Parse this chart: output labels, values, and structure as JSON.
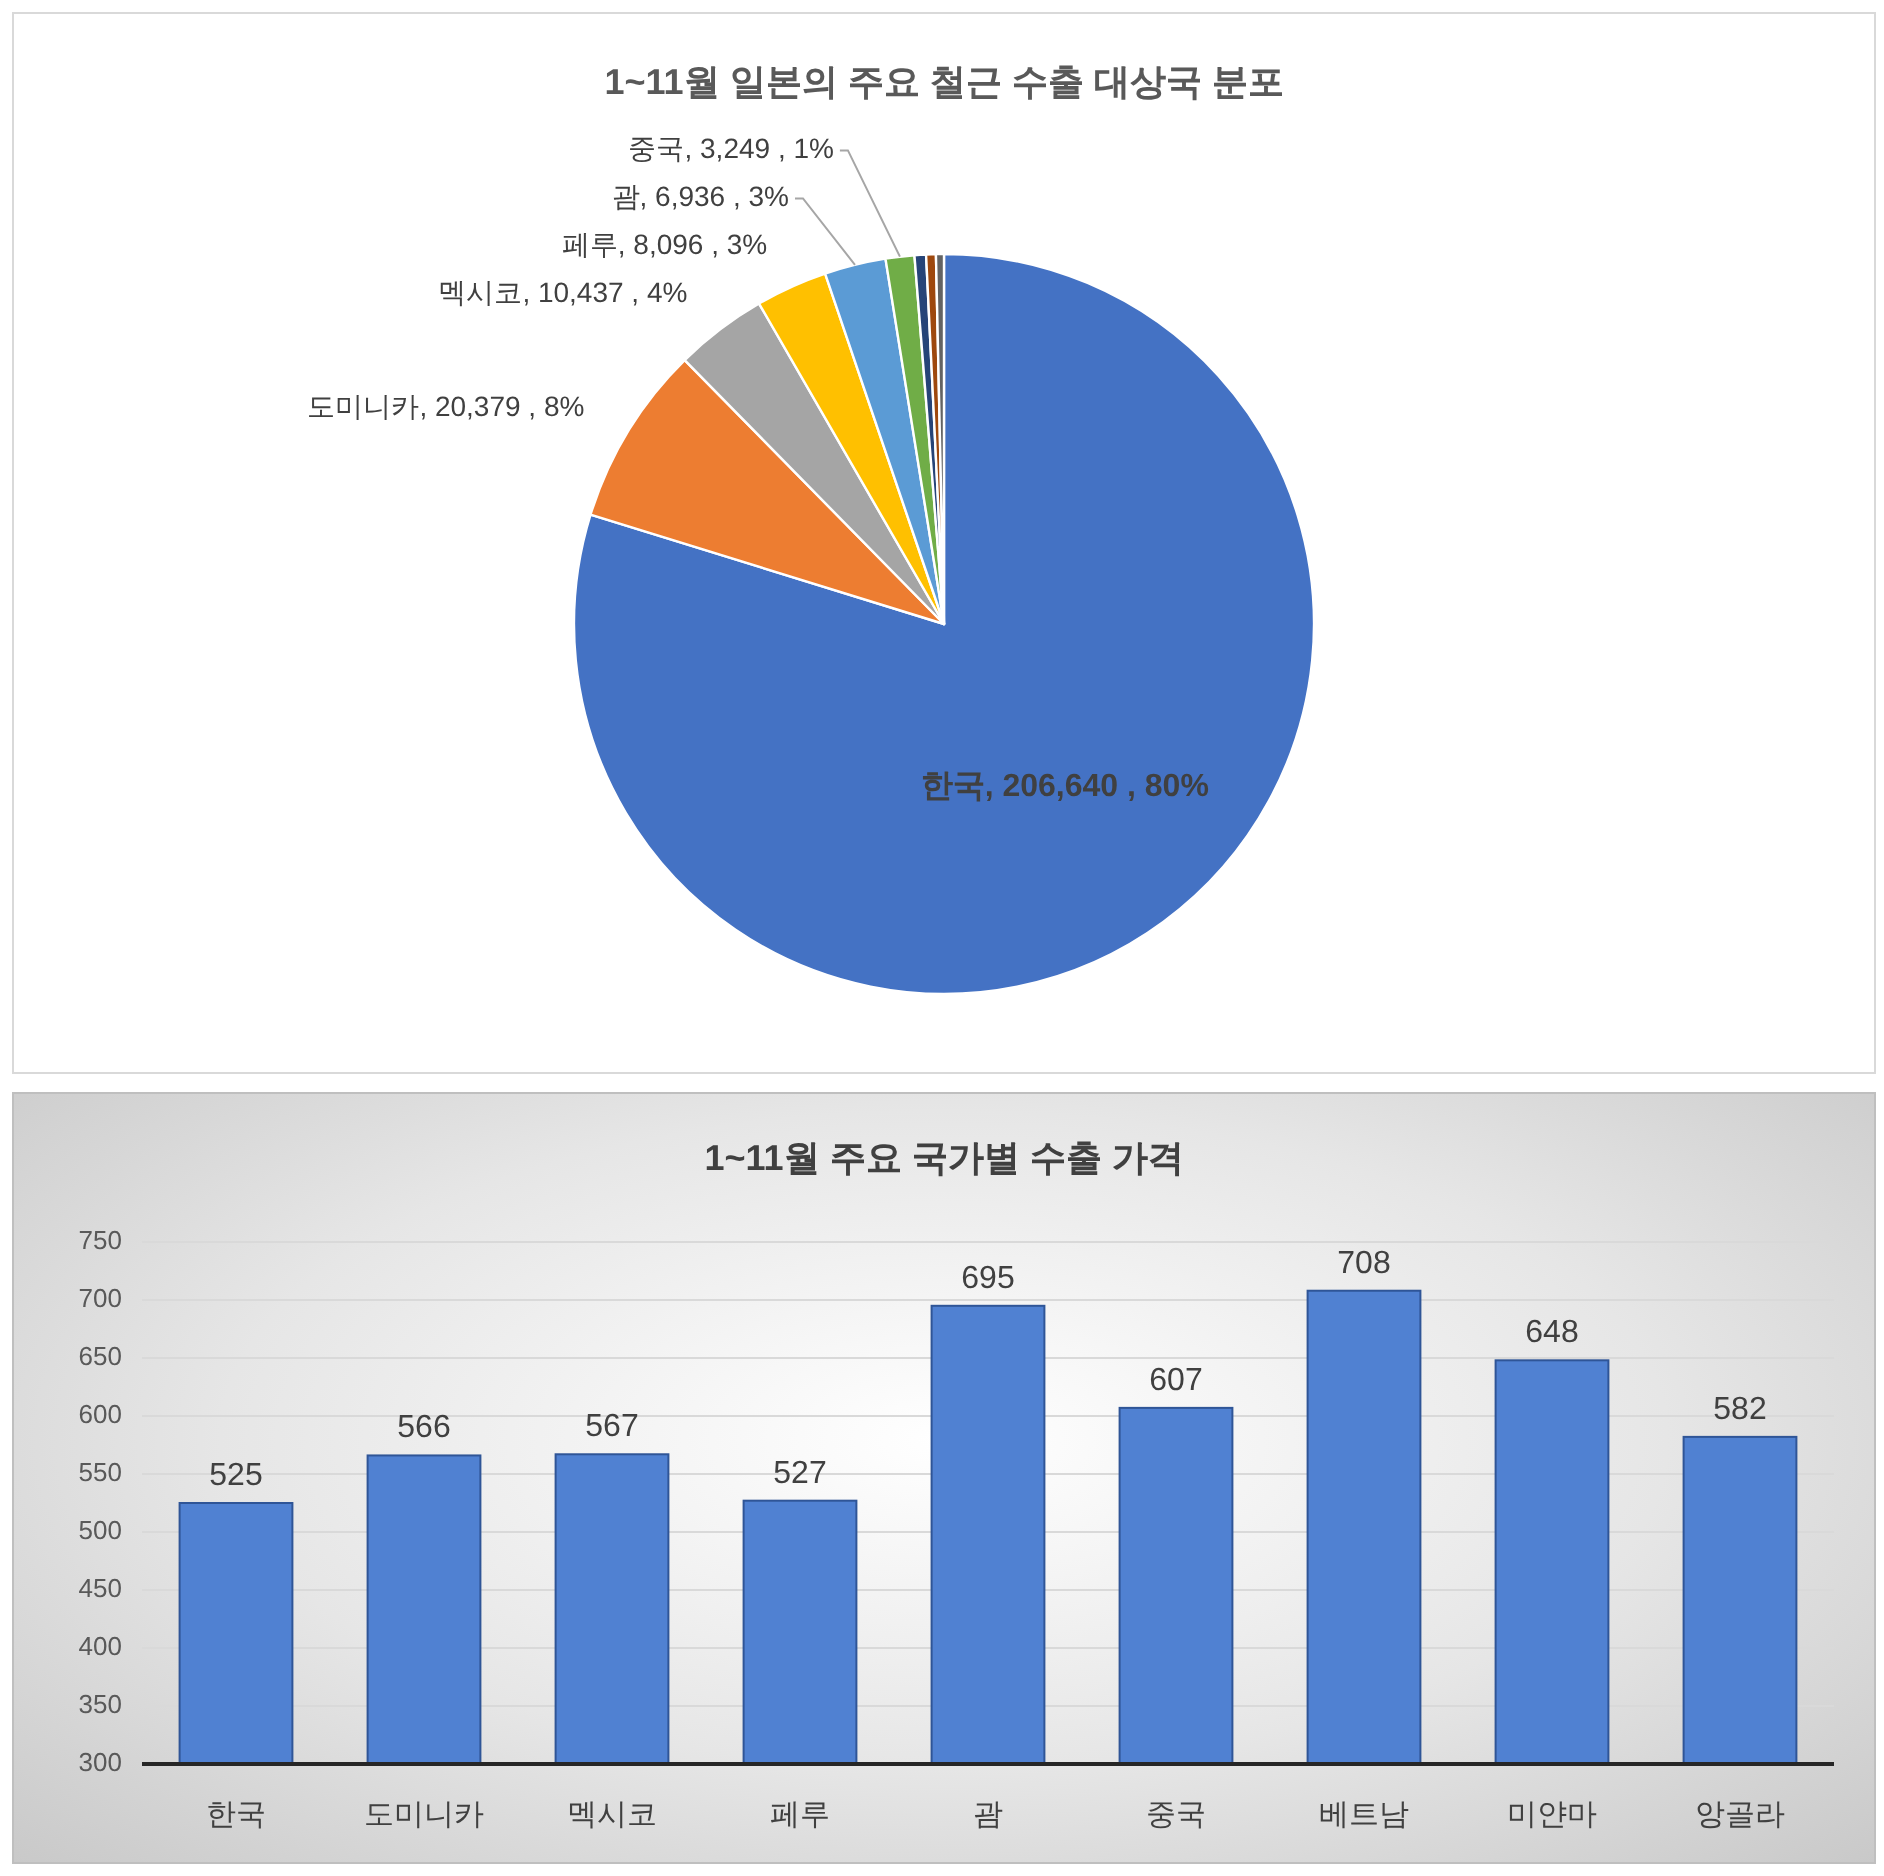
{
  "chart_data": [
    {
      "type": "pie",
      "title": "1~11월 일본의 주요 철근 수출 대상국 분포",
      "categories": [
        "한국",
        "도미니카",
        "멕시코",
        "페루",
        "괌",
        "중국",
        null,
        null,
        null
      ],
      "values": [
        206640,
        20379,
        10437,
        8096,
        6936,
        3249,
        1300,
        1100,
        900
      ],
      "colors": [
        "#4472c4",
        "#ed7d31",
        "#a5a5a5",
        "#ffc000",
        "#5b9bd5",
        "#70ad47",
        "#264478",
        "#9e480e",
        "#636363"
      ],
      "value_labels": [
        "206,640 , 80%",
        "20,379 , 8%",
        "10,437 , 4%",
        "8,096 , 3%",
        "6,936 , 3%",
        "3,249 , 1%",
        null,
        null,
        null
      ]
    },
    {
      "type": "bar",
      "title": "1~11월 주요 국가별 수출 가격",
      "categories": [
        "한국",
        "도미니카",
        "멕시코",
        "페루",
        "괌",
        "중국",
        "베트남",
        "미얀마",
        "앙골라"
      ],
      "values": [
        525,
        566,
        567,
        527,
        695,
        607,
        708,
        648,
        582
      ],
      "color": "#5081d2",
      "ylim": [
        300,
        750
      ],
      "yticks": [
        300,
        350,
        400,
        450,
        500,
        550,
        600,
        650,
        700,
        750
      ],
      "grid": "y",
      "data_labels": true
    }
  ]
}
